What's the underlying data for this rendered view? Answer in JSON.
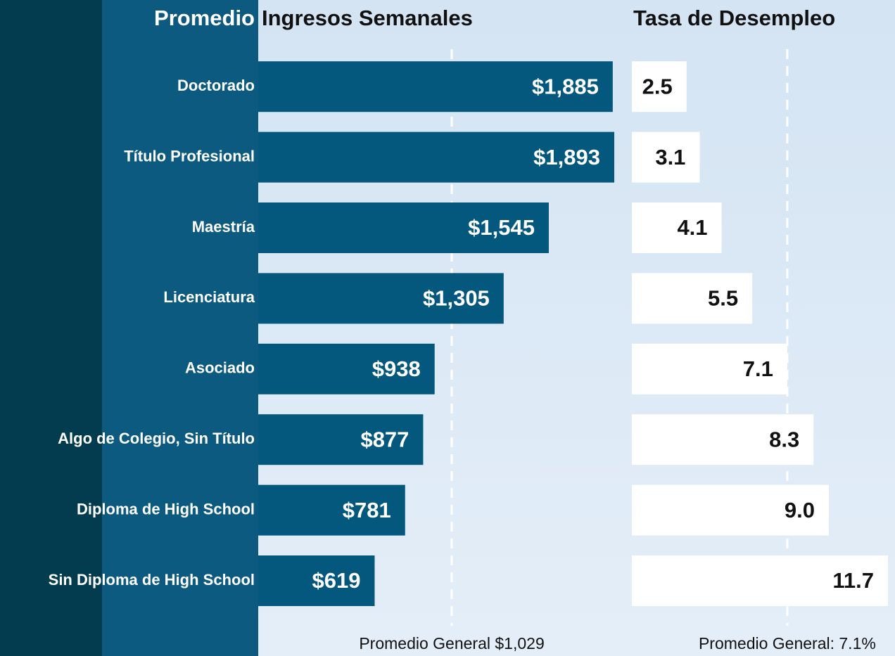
{
  "chart_data": {
    "type": "bar",
    "category_header": "Promedio",
    "categories": [
      "Doctorado",
      "Título Profesional",
      "Maestría",
      "Licenciatura",
      "Asociado",
      "Algo de Colegio, Sin Título",
      "Diploma de High School",
      "Sin Diploma de High School"
    ],
    "series": [
      {
        "name": "Ingresos Semanales",
        "color": "#04587e",
        "label_color": "#ffffff",
        "values": [
          1885,
          1893,
          1545,
          1305,
          938,
          877,
          781,
          619
        ],
        "value_labels": [
          "$1,885",
          "$1,893",
          "$1,545",
          "$1,305",
          "$938",
          "$877",
          "$781",
          "$619"
        ],
        "reference": {
          "value": 1029,
          "label": "Promedio General $1,029"
        }
      },
      {
        "name": "Tasa de Desempleo",
        "color": "#ffffff",
        "label_color": "#111111",
        "values": [
          2.5,
          3.1,
          4.1,
          5.5,
          7.1,
          8.3,
          9.0,
          11.7
        ],
        "value_labels": [
          "2.5",
          "3.1",
          "4.1",
          "5.5",
          "7.1",
          "8.3",
          "9.0",
          "11.7"
        ],
        "reference": {
          "value": 7.1,
          "label": "Promedio General: 7.1%"
        }
      }
    ]
  }
}
